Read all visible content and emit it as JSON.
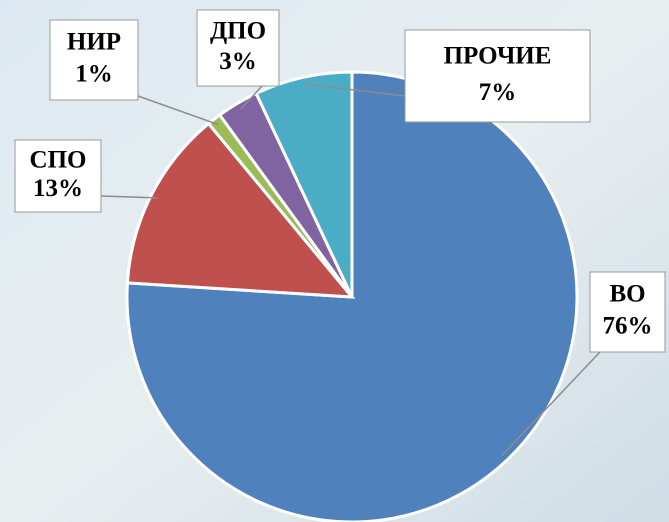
{
  "chart_data": {
    "type": "pie",
    "categories": [
      "ВО",
      "СПО",
      "НИР",
      "ДПО",
      "ПРОЧИЕ"
    ],
    "values": [
      76,
      13,
      1,
      3,
      7
    ],
    "value_labels": [
      "76%",
      "13%",
      "1%",
      "3%",
      "7%"
    ],
    "colors": [
      "#4f81bd",
      "#c0504d",
      "#9bbb59",
      "#8064a2",
      "#4bacc6"
    ]
  }
}
